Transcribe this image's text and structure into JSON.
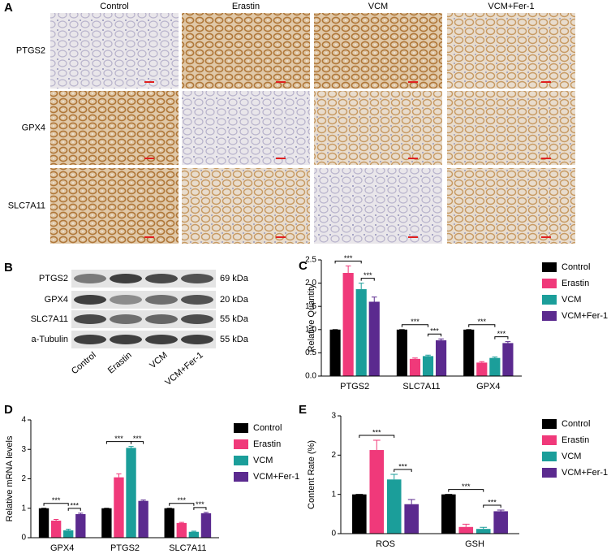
{
  "panel_labels": [
    "A",
    "B",
    "C",
    "D",
    "E"
  ],
  "ihc": {
    "columns": [
      "Control",
      "Erastin",
      "VCM",
      "VCM+Fer-1"
    ],
    "rows": [
      "PTGS2",
      "GPX4",
      "SLC7A11"
    ]
  },
  "blot": {
    "proteins": [
      "PTGS2",
      "GPX4",
      "SLC7A11",
      "a-Tubulin"
    ],
    "sizes": [
      "69 kDa",
      "20 kDa",
      "55 kDa",
      "55 kDa"
    ],
    "lanes": [
      "Control",
      "Erastin",
      "VCM",
      "VCM+Fer-1"
    ]
  },
  "chart_data": [
    {
      "type": "bar",
      "y_label": "Relative Quantity",
      "categories": [
        "PTGS2",
        "SLC7A11",
        "GPX4"
      ],
      "series": [
        {
          "name": "Control",
          "color": "#000000",
          "values": [
            1,
            1,
            1
          ],
          "errors": [
            0,
            0,
            0
          ]
        },
        {
          "name": "Erastin",
          "color": "#f0397a",
          "values": [
            2.22,
            0.37,
            0.29
          ],
          "errors": [
            0.15,
            0.02,
            0.02
          ]
        },
        {
          "name": "VCM",
          "color": "#1b9e9a",
          "values": [
            1.87,
            0.43,
            0.39
          ],
          "errors": [
            0.13,
            0.02,
            0.02
          ]
        },
        {
          "name": "VCM+Fer-1",
          "color": "#5b2a8f",
          "values": [
            1.6,
            0.77,
            0.71
          ],
          "errors": [
            0.1,
            0.03,
            0.03
          ]
        }
      ],
      "ylim": [
        0,
        2.5
      ],
      "yticks": [
        {
          "value": 0,
          "label": "0.0"
        },
        0.5,
        {
          "value": 1,
          "label": "1.0"
        },
        1.5,
        {
          "value": 2,
          "label": "2.0"
        },
        2.5
      ],
      "annotations": [
        "***",
        "***",
        "***",
        "***",
        "***",
        "***"
      ]
    },
    {
      "type": "bar",
      "y_label": "Relative mRNA levels",
      "categories": [
        "GPX4",
        "PTGS2",
        "SLC7A11"
      ],
      "series": [
        {
          "name": "Control",
          "color": "#000000",
          "values": [
            1,
            1,
            1
          ],
          "errors": [
            0,
            0,
            0
          ]
        },
        {
          "name": "Erastin",
          "color": "#f0397a",
          "values": [
            0.58,
            2.05,
            0.5
          ],
          "errors": [
            0.04,
            0.12,
            0.02
          ]
        },
        {
          "name": "VCM",
          "color": "#1b9e9a",
          "values": [
            0.25,
            3.05,
            0.2
          ],
          "errors": [
            0.04,
            0.05,
            0.02
          ]
        },
        {
          "name": "VCM+Fer-1",
          "color": "#5b2a8f",
          "values": [
            0.8,
            1.25,
            0.83
          ],
          "errors": [
            0.03,
            0.03,
            0.03
          ]
        }
      ],
      "ylim": [
        0,
        4
      ],
      "yticks": [
        0,
        1,
        2,
        3,
        4
      ],
      "annotations": [
        "***",
        "***",
        "***",
        "***",
        "***",
        "***"
      ]
    },
    {
      "type": "bar",
      "y_label": "Content Rate (%)",
      "categories": [
        "ROS",
        "GSH"
      ],
      "series": [
        {
          "name": "Control",
          "color": "#000000",
          "values": [
            1,
            1
          ],
          "errors": [
            0,
            0
          ]
        },
        {
          "name": "Erastin",
          "color": "#f0397a",
          "values": [
            2.13,
            0.17
          ],
          "errors": [
            0.25,
            0.07
          ]
        },
        {
          "name": "VCM",
          "color": "#1b9e9a",
          "values": [
            1.38,
            0.12
          ],
          "errors": [
            0.13,
            0.04
          ]
        },
        {
          "name": "VCM+Fer-1",
          "color": "#5b2a8f",
          "values": [
            0.75,
            0.57
          ],
          "errors": [
            0.12,
            0.03
          ]
        }
      ],
      "ylim": [
        0,
        3
      ],
      "yticks": [
        0,
        1,
        2,
        3
      ],
      "annotations": [
        "***",
        "***",
        "***",
        "***"
      ]
    }
  ]
}
